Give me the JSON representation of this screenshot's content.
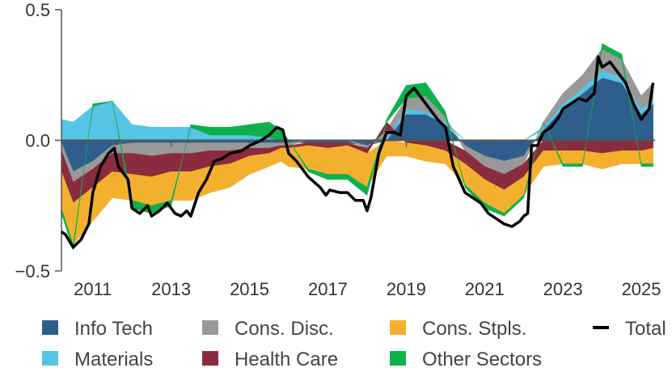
{
  "chart_data": {
    "type": "area",
    "stacked": true,
    "title": "",
    "xlabel": "",
    "ylabel": "",
    "xlim": [
      2010.2,
      2025.35
    ],
    "ylim": [
      -0.5,
      0.5
    ],
    "grid": false,
    "legend_position": "bottom",
    "x_ticks": [
      {
        "value": 2011,
        "label": "2011"
      },
      {
        "value": 2013,
        "label": "2013"
      },
      {
        "value": 2015,
        "label": "2015"
      },
      {
        "value": 2017,
        "label": "2017"
      },
      {
        "value": 2019,
        "label": "2019"
      },
      {
        "value": 2021,
        "label": "2021"
      },
      {
        "value": 2023,
        "label": "2023"
      },
      {
        "value": 2025,
        "label": "2025"
      }
    ],
    "y_ticks": [
      {
        "value": 0.5,
        "label": "0.5"
      },
      {
        "value": 0.0,
        "label": "0.0"
      },
      {
        "value": -0.5,
        "label": "−0.5"
      }
    ],
    "x": [
      2010.2,
      2010.5,
      2011.0,
      2011.5,
      2012.0,
      2012.5,
      2013.0,
      2013.5,
      2014.0,
      2014.5,
      2015.0,
      2015.5,
      2015.8,
      2016.0,
      2016.5,
      2017.0,
      2017.5,
      2018.0,
      2018.5,
      2019.0,
      2019.5,
      2020.0,
      2020.5,
      2021.0,
      2021.5,
      2022.0,
      2022.5,
      2023.0,
      2023.5,
      2024.0,
      2024.5,
      2025.0,
      2025.3
    ],
    "series": [
      {
        "name": "Info Tech",
        "color": "#2e5f8c",
        "values": [
          -0.01,
          -0.12,
          -0.08,
          -0.02,
          -0.01,
          -0.01,
          -0.01,
          -0.01,
          -0.01,
          -0.01,
          -0.01,
          -0.01,
          -0.01,
          -0.01,
          -0.01,
          -0.01,
          -0.01,
          -0.02,
          0.0,
          0.1,
          0.1,
          0.06,
          -0.02,
          -0.06,
          -0.08,
          -0.06,
          0.04,
          0.12,
          0.18,
          0.24,
          0.22,
          0.1,
          0.14
        ]
      },
      {
        "name": "Materials",
        "color": "#56c4e4",
        "values": [
          0.08,
          0.07,
          0.13,
          0.15,
          0.06,
          0.05,
          0.05,
          0.05,
          0.02,
          0.02,
          0.02,
          0.01,
          0.0,
          0.0,
          0.0,
          0.0,
          0.0,
          0.0,
          0.01,
          0.02,
          0.01,
          0.01,
          0.0,
          0.0,
          0.0,
          0.0,
          0.01,
          0.02,
          0.02,
          0.03,
          0.02,
          0.02,
          0.02
        ]
      },
      {
        "name": "Cons. Disc.",
        "color": "#999999",
        "values": [
          -0.03,
          -0.04,
          -0.03,
          -0.03,
          -0.04,
          -0.05,
          -0.04,
          -0.04,
          -0.03,
          -0.03,
          -0.02,
          -0.02,
          -0.01,
          -0.01,
          0.0,
          0.0,
          0.0,
          -0.01,
          0.03,
          0.04,
          0.06,
          0.02,
          -0.02,
          -0.04,
          -0.05,
          -0.03,
          0.02,
          0.04,
          0.05,
          0.08,
          0.07,
          0.05,
          0.06
        ]
      },
      {
        "name": "Health Care",
        "color": "#8b2c3e",
        "values": [
          -0.08,
          -0.08,
          -0.07,
          -0.07,
          -0.08,
          -0.08,
          -0.07,
          -0.07,
          -0.06,
          -0.05,
          -0.03,
          -0.02,
          -0.01,
          -0.01,
          -0.01,
          -0.02,
          -0.01,
          -0.02,
          0.03,
          -0.01,
          -0.02,
          -0.04,
          -0.05,
          -0.05,
          -0.06,
          -0.05,
          -0.04,
          -0.04,
          -0.04,
          -0.05,
          -0.04,
          -0.04,
          -0.03
        ]
      },
      {
        "name": "Cons. Stpls.",
        "color": "#f3b02f",
        "values": [
          -0.14,
          -0.16,
          -0.13,
          -0.1,
          -0.1,
          -0.11,
          -0.11,
          -0.11,
          -0.1,
          -0.09,
          -0.07,
          -0.05,
          -0.05,
          -0.07,
          -0.09,
          -0.1,
          -0.11,
          -0.13,
          -0.06,
          -0.05,
          -0.06,
          -0.05,
          -0.08,
          -0.09,
          -0.09,
          -0.07,
          -0.06,
          -0.05,
          -0.05,
          -0.06,
          -0.05,
          -0.05,
          -0.06
        ]
      },
      {
        "name": "Other Sectors",
        "color": "#0db14b",
        "values": [
          -0.02,
          -0.02,
          0.01,
          0.0,
          -0.03,
          -0.03,
          -0.02,
          0.01,
          0.03,
          0.03,
          0.04,
          0.06,
          0.04,
          0.0,
          -0.01,
          -0.02,
          -0.02,
          -0.03,
          0.01,
          0.05,
          0.05,
          0.02,
          -0.01,
          -0.02,
          -0.01,
          -0.01,
          0.0,
          -0.01,
          -0.01,
          0.02,
          0.02,
          -0.01,
          -0.01
        ]
      }
    ],
    "total": {
      "name": "Total",
      "color": "#000000",
      "x": [
        2010.2,
        2010.3,
        2010.5,
        2010.7,
        2010.9,
        2011.0,
        2011.2,
        2011.4,
        2011.55,
        2011.65,
        2011.75,
        2011.9,
        2012.0,
        2012.2,
        2012.4,
        2012.5,
        2012.7,
        2012.9,
        2013.1,
        2013.25,
        2013.4,
        2013.5,
        2013.7,
        2013.9,
        2014.1,
        2014.3,
        2014.5,
        2014.8,
        2015.0,
        2015.3,
        2015.5,
        2015.7,
        2015.85,
        2016.0,
        2016.2,
        2016.5,
        2016.8,
        2016.95,
        2017.05,
        2017.3,
        2017.5,
        2017.7,
        2017.9,
        2018.0,
        2018.1,
        2018.3,
        2018.5,
        2018.7,
        2018.85,
        2019.0,
        2019.2,
        2019.4,
        2019.6,
        2019.8,
        2020.0,
        2020.2,
        2020.35,
        2020.5,
        2020.7,
        2020.9,
        2021.1,
        2021.3,
        2021.5,
        2021.7,
        2021.9,
        2022.0,
        2022.1,
        2022.2,
        2022.35,
        2022.5,
        2022.7,
        2022.9,
        2023.0,
        2023.2,
        2023.4,
        2023.6,
        2023.8,
        2023.9,
        2024.0,
        2024.2,
        2024.4,
        2024.6,
        2024.8,
        2025.0,
        2025.2,
        2025.3
      ],
      "values": [
        -0.35,
        -0.36,
        -0.41,
        -0.38,
        -0.32,
        -0.2,
        -0.1,
        -0.05,
        -0.03,
        -0.1,
        -0.12,
        -0.15,
        -0.26,
        -0.28,
        -0.25,
        -0.29,
        -0.27,
        -0.24,
        -0.28,
        -0.29,
        -0.27,
        -0.29,
        -0.2,
        -0.15,
        -0.08,
        -0.07,
        -0.05,
        -0.04,
        -0.02,
        0.0,
        0.02,
        0.05,
        0.04,
        -0.05,
        -0.08,
        -0.14,
        -0.18,
        -0.21,
        -0.19,
        -0.2,
        -0.2,
        -0.23,
        -0.23,
        -0.27,
        -0.22,
        -0.05,
        0.03,
        0.03,
        0.02,
        0.17,
        0.2,
        0.16,
        0.12,
        0.08,
        0.05,
        -0.1,
        -0.15,
        -0.2,
        -0.22,
        -0.24,
        -0.28,
        -0.3,
        -0.32,
        -0.33,
        -0.31,
        -0.29,
        -0.28,
        -0.02,
        -0.02,
        0.03,
        0.05,
        0.09,
        0.12,
        0.14,
        0.16,
        0.15,
        0.18,
        0.32,
        0.28,
        0.3,
        0.26,
        0.22,
        0.14,
        0.08,
        0.12,
        0.22
      ]
    }
  },
  "legend": [
    {
      "name": "Info Tech",
      "kind": "box",
      "color": "#2e5f8c"
    },
    {
      "name": "Cons. Disc.",
      "kind": "box",
      "color": "#999999"
    },
    {
      "name": "Cons. Stpls.",
      "kind": "box",
      "color": "#f3b02f"
    },
    {
      "name": "Total",
      "kind": "line",
      "color": "#000000"
    },
    {
      "name": "Materials",
      "kind": "box",
      "color": "#56c4e4"
    },
    {
      "name": "Health Care",
      "kind": "box",
      "color": "#8b2c3e"
    },
    {
      "name": "Other Sectors",
      "kind": "box",
      "color": "#0db14b"
    }
  ]
}
